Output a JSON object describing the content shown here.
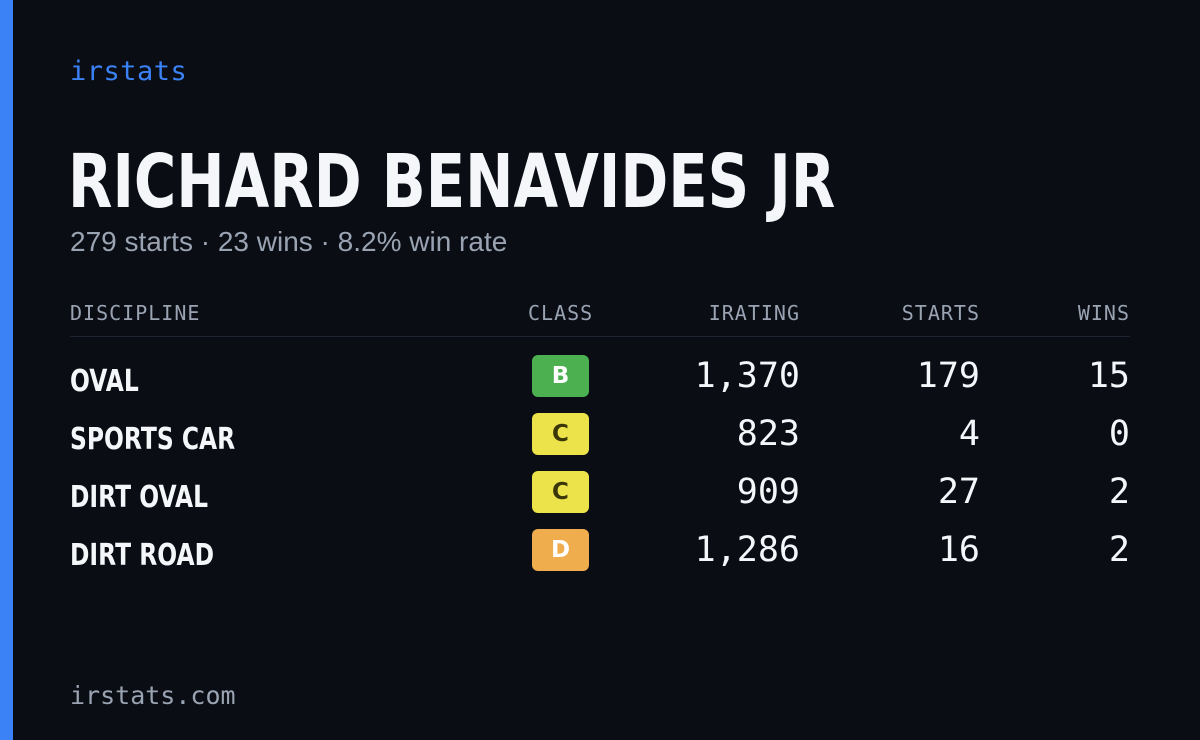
{
  "brand": "irstats",
  "driver": {
    "name": "RICHARD BENAVIDES JR",
    "summary": "279 starts · 23 wins · 8.2% win rate"
  },
  "table": {
    "headers": {
      "discipline": "DISCIPLINE",
      "class": "CLASS",
      "irating": "IRATING",
      "starts": "STARTS",
      "wins": "WINS"
    },
    "rows": [
      {
        "discipline": "OVAL",
        "class": "B",
        "class_color": "#4caf50",
        "class_text_color": "#ffffff",
        "irating": "1,370",
        "starts": "179",
        "wins": "15"
      },
      {
        "discipline": "SPORTS CAR",
        "class": "C",
        "class_color": "#ece34a",
        "class_text_color": "#3a3608",
        "irating": "823",
        "starts": "4",
        "wins": "0"
      },
      {
        "discipline": "DIRT OVAL",
        "class": "C",
        "class_color": "#ece34a",
        "class_text_color": "#3a3608",
        "irating": "909",
        "starts": "27",
        "wins": "2"
      },
      {
        "discipline": "DIRT ROAD",
        "class": "D",
        "class_color": "#f0ad4e",
        "class_text_color": "#ffffff",
        "irating": "1,286",
        "starts": "16",
        "wins": "2"
      }
    ]
  },
  "footer": "irstats.com",
  "colors": {
    "background": "#0a0d14",
    "accent": "#3b82f6",
    "muted": "#9aa3b2"
  }
}
